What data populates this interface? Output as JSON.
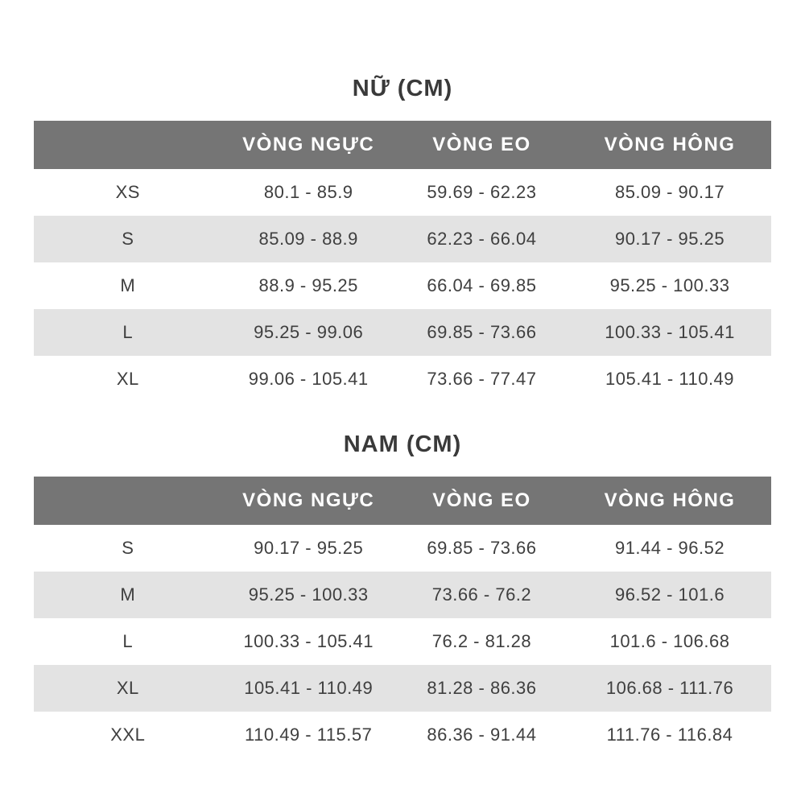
{
  "colors": {
    "page_bg": "#ffffff",
    "title_text": "#3a3a3a",
    "header_bg": "#757575",
    "header_text": "#ffffff",
    "row_alt_bg": "#e3e3e3",
    "body_text": "#3f3f3f"
  },
  "tables": [
    {
      "title": "NỮ (CM)",
      "columns": [
        "",
        "VÒNG NGỰC",
        "VÒNG EO",
        "VÒNG HÔNG"
      ],
      "rows": [
        [
          "XS",
          "80.1 - 85.9",
          "59.69 - 62.23",
          "85.09 - 90.17"
        ],
        [
          "S",
          "85.09 - 88.9",
          "62.23 - 66.04",
          "90.17 - 95.25"
        ],
        [
          "M",
          "88.9 - 95.25",
          "66.04 - 69.85",
          "95.25 - 100.33"
        ],
        [
          "L",
          "95.25 - 99.06",
          "69.85 - 73.66",
          "100.33 - 105.41"
        ],
        [
          "XL",
          "99.06 - 105.41",
          "73.66 - 77.47",
          "105.41 - 110.49"
        ]
      ]
    },
    {
      "title": "NAM (CM)",
      "columns": [
        "",
        "VÒNG NGỰC",
        "VÒNG EO",
        "VÒNG HÔNG"
      ],
      "rows": [
        [
          "S",
          "90.17 - 95.25",
          "69.85 - 73.66",
          "91.44 - 96.52"
        ],
        [
          "M",
          "95.25 - 100.33",
          "73.66 - 76.2",
          "96.52 - 101.6"
        ],
        [
          "L",
          "100.33 - 105.41",
          "76.2 - 81.28",
          "101.6 - 106.68"
        ],
        [
          "XL",
          "105.41 - 110.49",
          "81.28 - 86.36",
          "106.68 - 111.76"
        ],
        [
          "XXL",
          "110.49 - 115.57",
          "86.36 - 91.44",
          "111.76 - 116.84"
        ]
      ]
    }
  ]
}
